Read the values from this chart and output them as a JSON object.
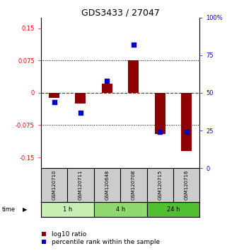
{
  "title": "GDS3433 / 27047",
  "samples": [
    "GSM120710",
    "GSM120711",
    "GSM120648",
    "GSM120708",
    "GSM120715",
    "GSM120716"
  ],
  "log10_ratio": [
    -0.012,
    -0.025,
    0.022,
    0.076,
    -0.095,
    -0.135
  ],
  "percentile_rank": [
    44,
    37,
    58,
    82,
    24,
    24
  ],
  "time_groups": [
    {
      "label": "1 h",
      "samples": [
        "GSM120710",
        "GSM120711"
      ],
      "color": "#c8f0b4"
    },
    {
      "label": "4 h",
      "samples": [
        "GSM120648",
        "GSM120708"
      ],
      "color": "#90d870"
    },
    {
      "label": "24 h",
      "samples": [
        "GSM120715",
        "GSM120716"
      ],
      "color": "#50c030"
    }
  ],
  "ylim_left": [
    -0.175,
    0.175
  ],
  "ylim_right": [
    0,
    100
  ],
  "yticks_left": [
    -0.15,
    -0.075,
    0,
    0.075,
    0.15
  ],
  "ytick_labels_left": [
    "-0.15",
    "-0.075",
    "0",
    "0.075",
    "0.15"
  ],
  "yticks_right": [
    0,
    25,
    50,
    75,
    100
  ],
  "ytick_labels_right": [
    "0",
    "25",
    "50",
    "75",
    "100%"
  ],
  "bar_color": "#8b0000",
  "dot_color": "#0000cc",
  "zero_line_color": "#cc0000",
  "dot_size": 18,
  "bar_width": 0.4,
  "sample_box_color": "#cccccc",
  "font_size_title": 9,
  "font_size_ticks": 6,
  "font_size_labels": 6,
  "font_size_legend": 6.5,
  "font_size_sample": 5
}
